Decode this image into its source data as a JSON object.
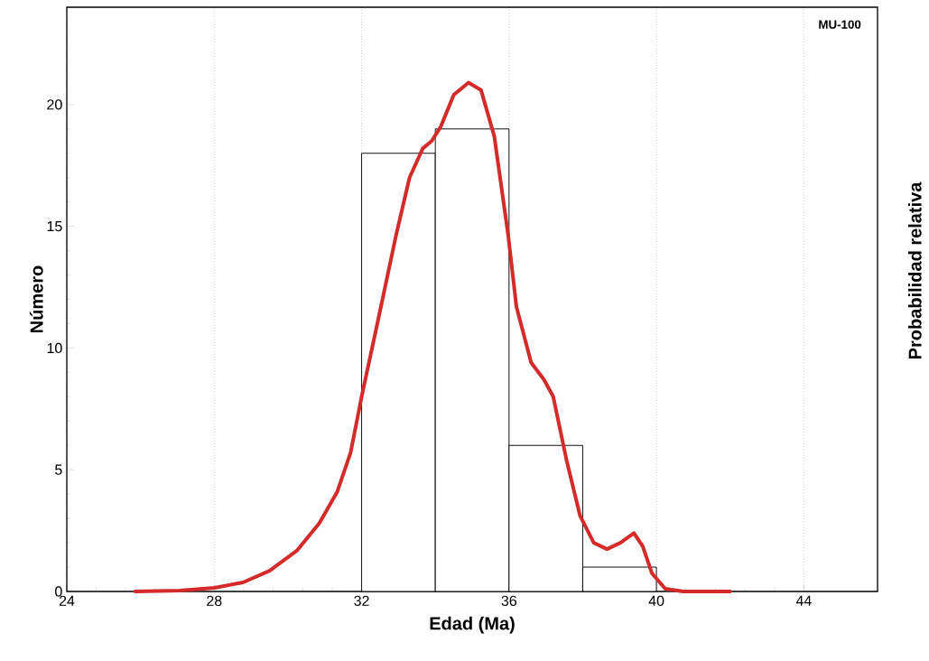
{
  "chart_data": {
    "type": "histogram",
    "xlabel": "Edad (Ma)",
    "ylabel": "Número",
    "y2label": "Probabilidad relativa",
    "annotations": [
      "MU-100"
    ],
    "bins": [
      32,
      34,
      36,
      38,
      40
    ],
    "values": [
      18,
      19,
      6,
      1
    ],
    "series": [
      {
        "type": "line",
        "color": "#d42a2a",
        "x": [
          25.85,
          27.07,
          28,
          28.78,
          29.5,
          30.24,
          30.85,
          31.34,
          31.7,
          32,
          32.44,
          32.93,
          33.3,
          33.66,
          33.9,
          34.15,
          34.5,
          34.9,
          35.24,
          35.6,
          35.98,
          36.2,
          36.6,
          36.95,
          37.2,
          37.56,
          37.93,
          38.3,
          38.66,
          39.02,
          39.39,
          39.63,
          39.88,
          40.24,
          40.73,
          42
        ],
        "values": [
          0,
          0.04,
          0.15,
          0.37,
          0.85,
          1.67,
          2.8,
          4.1,
          5.7,
          8.0,
          11.1,
          14.6,
          17.0,
          18.2,
          18.5,
          19.1,
          20.4,
          20.9,
          20.6,
          18.7,
          14.6,
          11.7,
          9.4,
          8.7,
          8.0,
          5.4,
          3.1,
          2.0,
          1.74,
          2.0,
          2.4,
          1.85,
          0.74,
          0.11,
          0,
          0
        ]
      }
    ],
    "xlim": [
      24,
      46
    ],
    "xticks": [
      24,
      28,
      32,
      36,
      40,
      44
    ],
    "ylim": [
      0,
      24
    ],
    "yticks": [
      0,
      5,
      10,
      15,
      20
    ],
    "grid": "x"
  }
}
